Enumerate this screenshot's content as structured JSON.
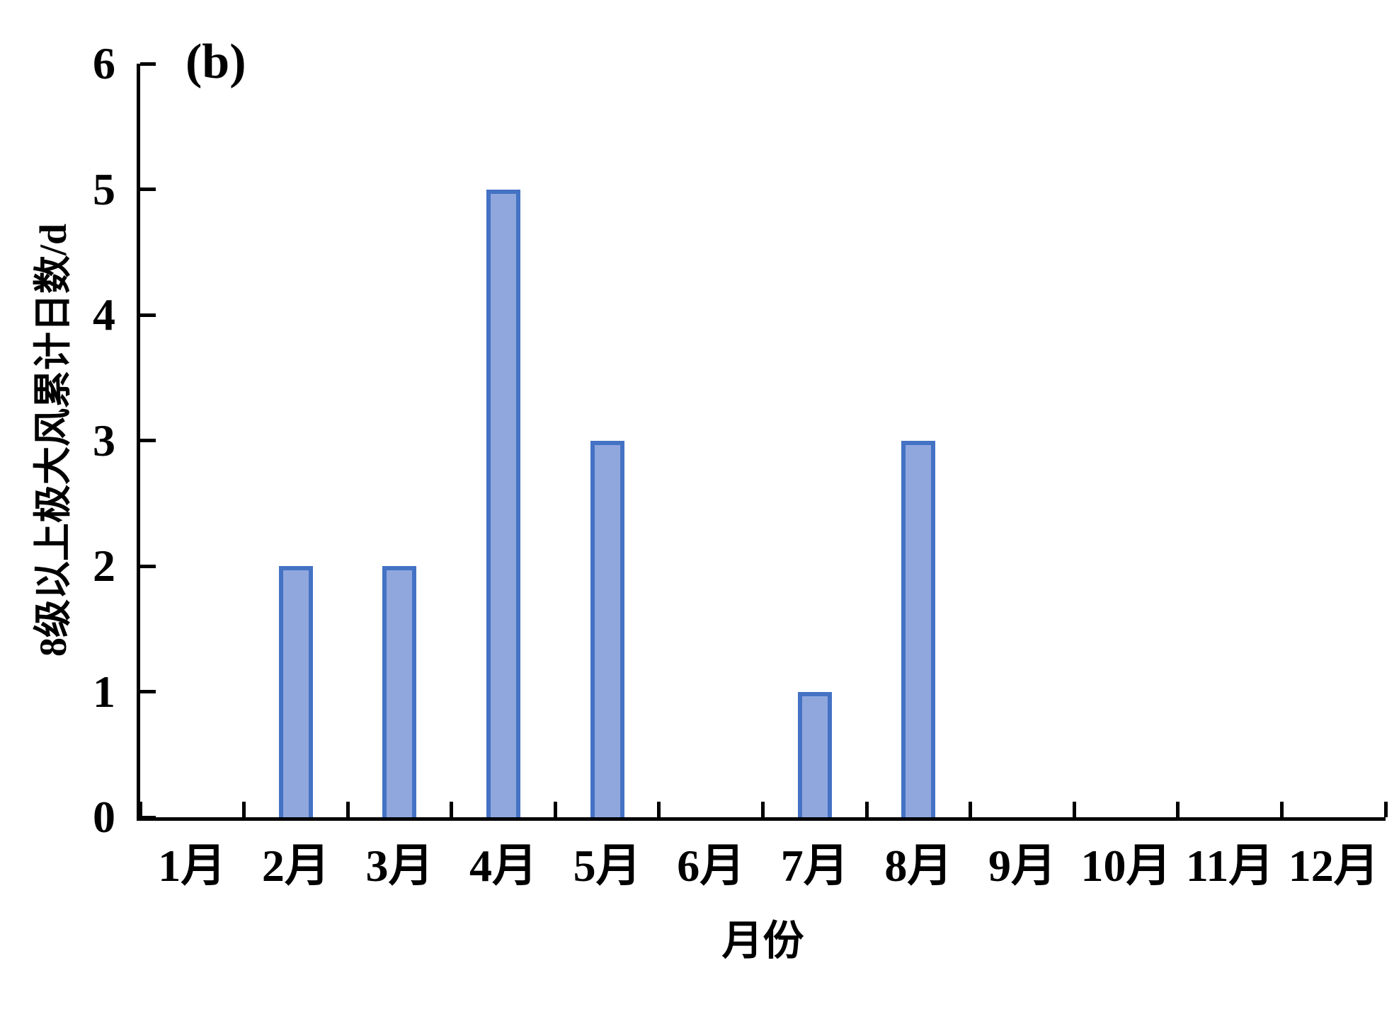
{
  "panel_label": "(b)",
  "chart_data": {
    "type": "bar",
    "title": "(b)",
    "categories": [
      "1月",
      "2月",
      "3月",
      "4月",
      "5月",
      "6月",
      "7月",
      "8月",
      "9月",
      "10月",
      "11月",
      "12月"
    ],
    "values": [
      0,
      2,
      2,
      5,
      3,
      0,
      1,
      3,
      0,
      0,
      0,
      0
    ],
    "xlabel": "月份",
    "ylabel": "8级以上极大风累计日数/d",
    "ylim": [
      0,
      6
    ],
    "yticks": [
      0,
      1,
      2,
      3,
      4,
      5,
      6
    ],
    "grid": false,
    "legend_position": "none",
    "bar_fill_color": "#90A7DE",
    "bar_border_color": "#4472C4",
    "axis_color": "#000000"
  }
}
